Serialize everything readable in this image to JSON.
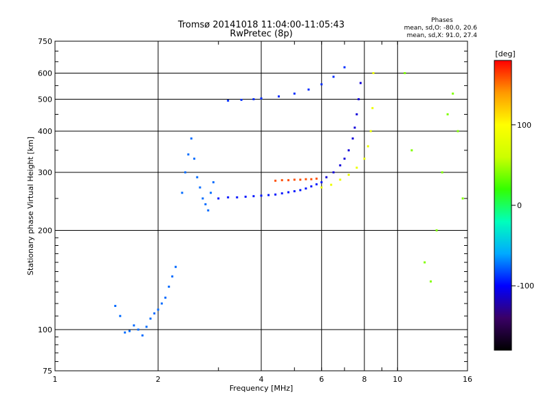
{
  "chart_data": {
    "type": "scatter",
    "title": "Tromsø 20141018 11:04:00-11:05:43",
    "subtitle": "RwPretec (8p)",
    "xlabel": "Frequency [MHz]",
    "ylabel": "Stationary phase Virtual Height [km]",
    "xscale": "log",
    "yscale": "log",
    "xlim": [
      1,
      16
    ],
    "ylim": [
      75,
      750
    ],
    "x_ticks": [
      1,
      2,
      4,
      6,
      8,
      10,
      16
    ],
    "x_tick_labels": [
      "1",
      "2",
      "4",
      "6",
      "8",
      "10",
      "16"
    ],
    "y_ticks": [
      75,
      100,
      200,
      300,
      400,
      500,
      600,
      750
    ],
    "y_tick_labels": [
      "75",
      "100",
      "200",
      "300",
      "400",
      "500",
      "600",
      "750"
    ],
    "grid": true,
    "stats": {
      "heading": "Phases",
      "line1": "mean, sd,O: -80.0, 20.6",
      "line2": "mean, sd,X:  91.0, 27.4"
    },
    "colorbar": {
      "label": "[deg]",
      "range": [
        -180,
        180
      ],
      "ticks": [
        100,
        0,
        -100
      ],
      "tick_labels": [
        "100",
        "0",
        "-100"
      ],
      "colormap": [
        "#000000",
        "#3a0066",
        "#0000ff",
        "#00aaff",
        "#00ffbb",
        "#33ff00",
        "#ccff00",
        "#ffff00",
        "#ff9900",
        "#ff0000"
      ]
    },
    "series": [
      {
        "x": [
          2.35,
          2.4,
          2.45,
          2.5,
          2.55,
          2.6,
          2.65,
          2.7,
          2.75,
          2.8,
          2.85,
          2.9
        ],
        "y": [
          260,
          300,
          340,
          380,
          330,
          290,
          270,
          250,
          240,
          230,
          260,
          280
        ],
        "phase": -75
      },
      {
        "x": [
          3.0,
          3.2,
          3.4,
          3.6,
          3.8,
          4.0,
          4.2,
          4.4,
          4.6,
          4.8,
          5.0,
          5.2,
          5.4,
          5.6,
          5.8,
          6.0
        ],
        "y": [
          250,
          252,
          252,
          253,
          254,
          255,
          256,
          257,
          259,
          261,
          263,
          265,
          268,
          272,
          276,
          280
        ],
        "phase": -95
      },
      {
        "x": [
          6.2,
          6.5,
          6.8,
          7.0,
          7.2,
          7.4,
          7.5,
          7.6,
          7.7,
          7.8
        ],
        "y": [
          290,
          300,
          315,
          330,
          350,
          380,
          410,
          450,
          500,
          560
        ],
        "phase": -110
      },
      {
        "x": [
          6.0,
          6.4,
          6.8,
          7.2,
          7.6,
          8.0,
          8.2,
          8.35,
          8.45,
          8.5
        ],
        "y": [
          270,
          275,
          285,
          295,
          310,
          330,
          360,
          400,
          470,
          600
        ],
        "phase": 85
      },
      {
        "x": [
          4.4,
          4.6,
          4.8,
          5.0,
          5.2,
          5.4,
          5.6,
          5.8
        ],
        "y": [
          283,
          284,
          284,
          285,
          285,
          286,
          286,
          287
        ],
        "phase": 160
      },
      {
        "x": [
          3.2,
          3.5,
          3.8,
          4.0,
          4.5,
          5.0,
          5.5,
          6.0,
          6.5,
          7.0
        ],
        "y": [
          495,
          498,
          500,
          503,
          510,
          520,
          535,
          555,
          585,
          625
        ],
        "phase": -90
      },
      {
        "x": [
          1.5,
          1.55,
          1.6,
          1.65,
          1.7,
          1.75,
          1.8,
          1.85,
          1.9,
          1.95,
          2.0,
          2.05,
          2.1,
          2.15,
          2.2,
          2.25
        ],
        "y": [
          118,
          110,
          98,
          99,
          103,
          100,
          96,
          102,
          108,
          112,
          115,
          120,
          125,
          135,
          145,
          155
        ],
        "phase": -75
      },
      {
        "x": [
          10.5,
          11,
          12,
          12.5,
          13,
          13.5,
          14,
          14.5,
          15,
          15.5
        ],
        "y": [
          600,
          350,
          160,
          140,
          200,
          300,
          450,
          520,
          400,
          250
        ],
        "phase": 40
      }
    ]
  }
}
